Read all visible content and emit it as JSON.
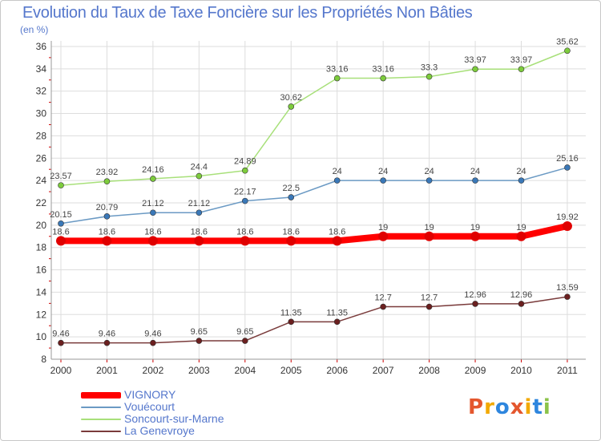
{
  "header": {
    "title": "Evolution du Taux de Taxe Foncière sur les Propriétés Non Bâties",
    "unit": "(en %)"
  },
  "logo": {
    "letters": [
      "P",
      "r",
      "o",
      "x",
      "i",
      "t",
      "i"
    ],
    "colors": [
      "#e4572e",
      "#f2a900",
      "#2e86de",
      "#e4572e",
      "#f2a900",
      "#2e86de",
      "#8bc34a"
    ]
  },
  "chart_data": {
    "type": "line",
    "title": "Evolution du Taux de Taxe Foncière sur les Propriétés Non Bâties",
    "ylabel": "(en %)",
    "x": [
      "2000",
      "2001",
      "2002",
      "2003",
      "2004",
      "2005",
      "2006",
      "2007",
      "2008",
      "2009",
      "2010",
      "2011"
    ],
    "yticks": [
      8,
      10,
      12,
      14,
      16,
      18,
      20,
      22,
      24,
      26,
      28,
      30,
      32,
      34,
      36
    ],
    "ylim": [
      8,
      36.5
    ],
    "grid": true,
    "series": [
      {
        "name": "VIGNORY",
        "color": "#ff0000",
        "marker": "#e00000",
        "width": 8,
        "values": [
          18.6,
          18.6,
          18.6,
          18.6,
          18.6,
          18.6,
          18.6,
          19,
          19,
          19,
          19,
          19.92
        ],
        "labels": [
          "18.6",
          "18.6",
          "18.6",
          "18.6",
          "18.6",
          "18.6",
          "18.6",
          "19",
          "19",
          "19",
          "19",
          "19.92"
        ]
      },
      {
        "name": "Vouécourt",
        "color": "#6b9ac4",
        "marker": "#3a78b8",
        "width": 1.5,
        "values": [
          20.15,
          20.79,
          21.12,
          21.12,
          22.17,
          22.5,
          24,
          24,
          24,
          24,
          24,
          25.16
        ],
        "labels": [
          "20.15",
          "20.79",
          "21.12",
          "21.12",
          "22.17",
          "22.5",
          "24",
          "24",
          "24",
          "24",
          "24",
          "25.16"
        ]
      },
      {
        "name": "Soncourt-sur-Marne",
        "color": "#a8e07a",
        "marker": "#7dcc3c",
        "width": 1.5,
        "values": [
          23.57,
          23.92,
          24.16,
          24.4,
          24.89,
          30.62,
          33.16,
          33.16,
          33.3,
          33.97,
          33.97,
          35.62
        ],
        "labels": [
          "23.57",
          "23.92",
          "24.16",
          "24.4",
          "24.89",
          "30.62",
          "33.16",
          "33.16",
          "33.3",
          "33.97",
          "33.97",
          "35.62"
        ]
      },
      {
        "name": "La Genevroye",
        "color": "#7a3b3b",
        "marker": "#6b1f1f",
        "width": 1.5,
        "values": [
          9.46,
          9.46,
          9.46,
          9.65,
          9.65,
          11.35,
          11.35,
          12.7,
          12.7,
          12.96,
          12.96,
          13.59
        ],
        "labels": [
          "9.46",
          "9.46",
          "9.46",
          "9.65",
          "9.65",
          "11.35",
          "11.35",
          "12.7",
          "12.7",
          "12.96",
          "12.96",
          "13.59"
        ]
      }
    ],
    "legend_position": "bottom-left"
  }
}
